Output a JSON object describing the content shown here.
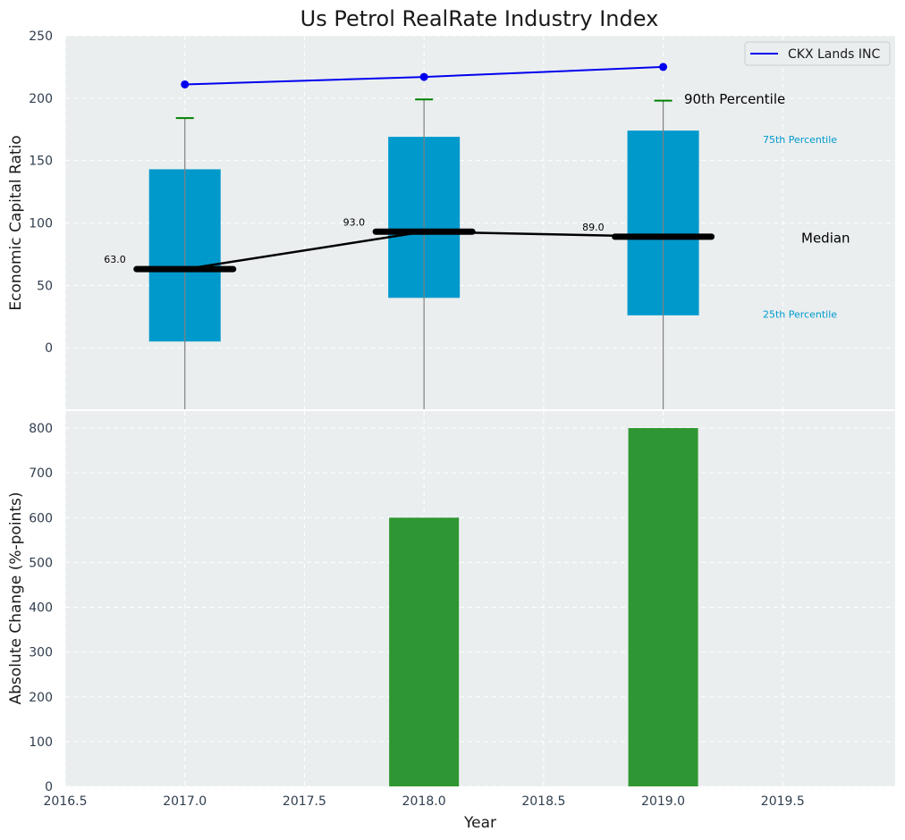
{
  "title": "Us Petrol RealRate Industry Index",
  "colors": {
    "panel_bg": "#EAEEEF",
    "grid": "#ffffff",
    "box": "#0099CC",
    "whisker": "#808080",
    "cap": "#008000",
    "median": "#000000",
    "company_line": "#0000EE",
    "bar": "#2E9632",
    "percentile_text": "#0099CC"
  },
  "chart_data": [
    {
      "type": "box",
      "ylabel": "Economic Capital Ratio",
      "xlim": [
        2016.5,
        2019.97
      ],
      "ylim": [
        -50,
        250
      ],
      "yticks": [
        0,
        50,
        100,
        150,
        200,
        250
      ],
      "categories": [
        2017.0,
        2018.0,
        2019.0
      ],
      "p25": [
        5,
        40,
        26
      ],
      "p75": [
        143,
        169,
        174
      ],
      "p90": [
        184,
        199,
        198
      ],
      "median": [
        63.0,
        93.0,
        89.0
      ],
      "median_labels": [
        "63.0",
        "93.0",
        "89.0"
      ],
      "company": {
        "name": "CKX Lands INC",
        "values": [
          211,
          217,
          225
        ]
      },
      "legend": {
        "label": "CKX Lands INC",
        "position": "top-right"
      },
      "annotations": {
        "p90": "90th Percentile",
        "p75": "75th Percentile",
        "median": "Median",
        "p25": "25th Percentile"
      }
    },
    {
      "type": "bar",
      "xlabel": "Year",
      "ylabel": "Absolute Change (%-points)",
      "xlim": [
        2016.5,
        2019.97
      ],
      "ylim": [
        0,
        840
      ],
      "yticks": [
        0,
        100,
        200,
        300,
        400,
        500,
        600,
        700,
        800
      ],
      "xticks": [
        2016.5,
        2017.0,
        2017.5,
        2018.0,
        2018.5,
        2019.0,
        2019.5
      ],
      "xtick_labels": [
        "2016.5",
        "2017.0",
        "2017.5",
        "2018.0",
        "2018.5",
        "2019.0",
        "2019.5"
      ],
      "categories": [
        2017.0,
        2018.0,
        2019.0
      ],
      "values": [
        0,
        600,
        800
      ]
    }
  ]
}
